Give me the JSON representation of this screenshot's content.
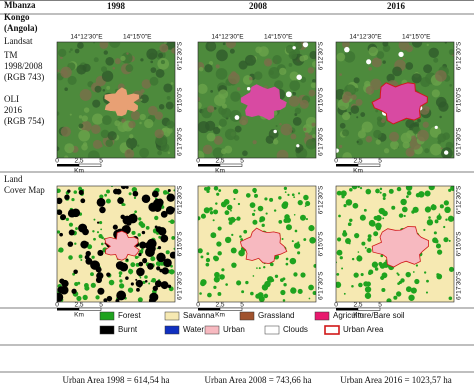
{
  "header": {
    "site": [
      "Mbanza",
      "Kongo",
      "(Angola)"
    ],
    "columns": [
      "1998",
      "2008",
      "2016"
    ]
  },
  "rows": [
    {
      "label": "Landsat",
      "notes": [
        "TM",
        "1998/2008",
        "(RGB 743)",
        "OLI",
        "2016",
        "(RGB 754)"
      ]
    },
    {
      "label": [
        "Land",
        "Cover Map"
      ]
    }
  ],
  "map_labels": {
    "lon": [
      "14°12'30\"E",
      "14°15'0\"E"
    ],
    "lat": [
      "6°12'30\"S",
      "6°15'0\"S",
      "6°17'30\"S"
    ],
    "scale": [
      "0",
      "2,5",
      "5"
    ],
    "unit": "Km"
  },
  "legend": [
    {
      "label": "Forest",
      "color": "#1fa31f"
    },
    {
      "label": "Savanna",
      "color": "#f6e9b2"
    },
    {
      "label": "Grassland",
      "color": "#a0522d"
    },
    {
      "label": "Agriculture/Bare soil",
      "color": "#e8196e"
    },
    {
      "label": "Burnt",
      "color": "#000000"
    },
    {
      "label": "Water",
      "color": "#1030c0"
    },
    {
      "label": "Urban",
      "color": "#f7b9c0"
    },
    {
      "label": "Clouds",
      "color": "#ffffff"
    },
    {
      "label": "Urban Area",
      "border": "#d01818"
    }
  ],
  "footer": [
    "Urban Area 1998 = 614,54 ha",
    "Urban Area 2008 = 743,66 ha",
    "Urban Area 2016 = 1023,57 ha"
  ]
}
